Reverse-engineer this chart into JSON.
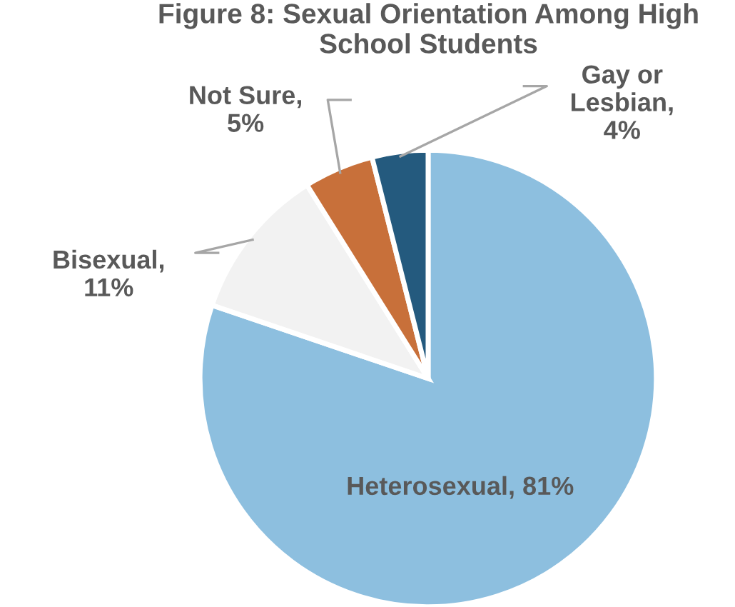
{
  "chart_data": {
    "type": "pie",
    "title": "Figure 8: Sexual Orientation Among High School Students",
    "categories": [
      "Heterosexual, 81%",
      "Bisexual,\n11%",
      "Not Sure,\n5%",
      "Gay or\nLesbian,\n4%"
    ],
    "values": [
      81,
      11,
      5,
      4
    ],
    "colors": [
      "#8dbfdf",
      "#f2f2f2",
      "#c8703a",
      "#245a7e"
    ],
    "legend": false
  }
}
